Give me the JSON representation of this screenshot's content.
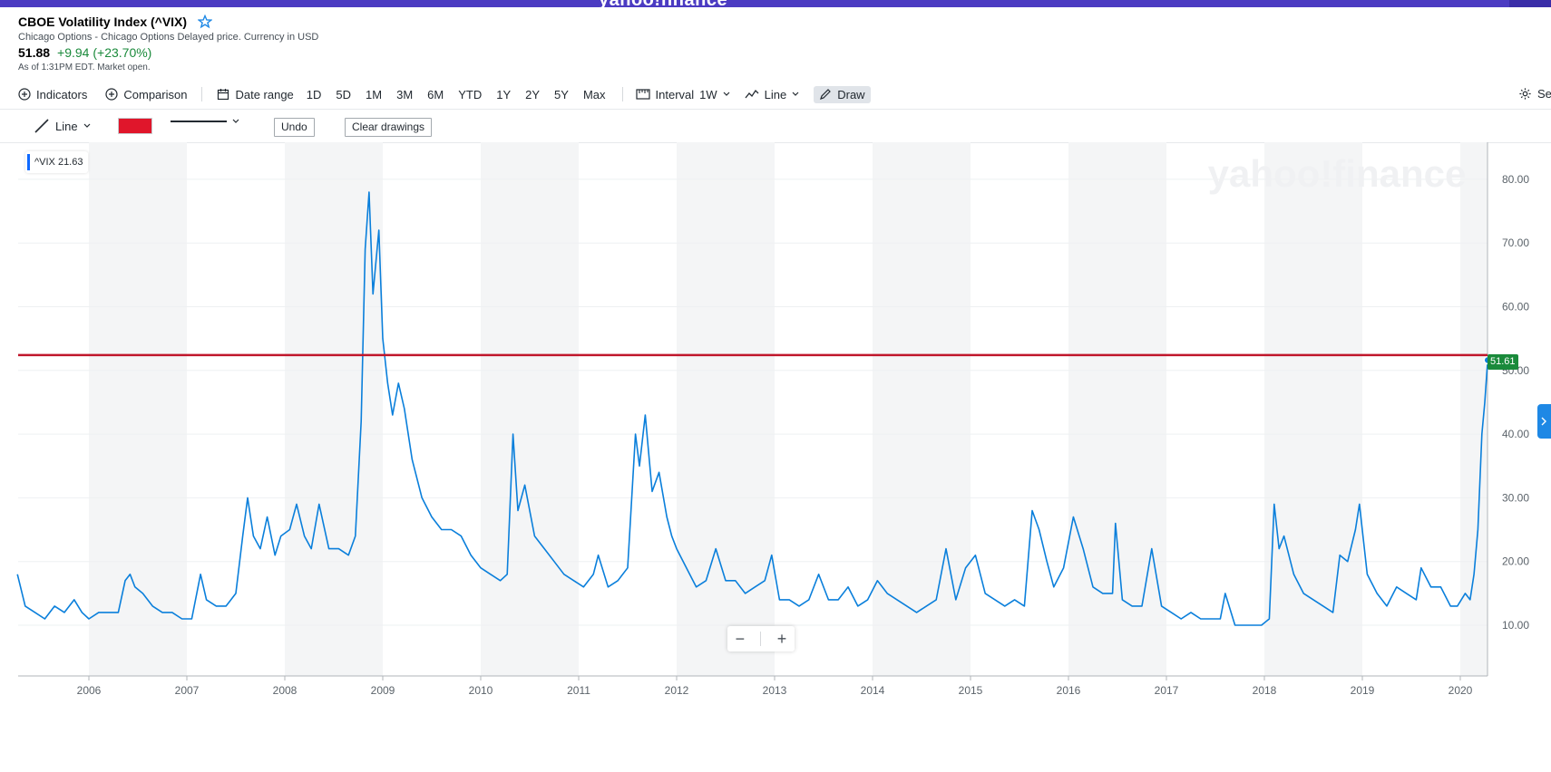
{
  "header": {
    "brand": "yahoo!finance"
  },
  "quote": {
    "title": "CBOE Volatility Index (^VIX)",
    "subtitle": "Chicago Options - Chicago Options Delayed price. Currency in USD",
    "price": "51.88",
    "change": "+9.94 (+23.70%)",
    "as_of": "As of 1:31PM EDT. Market open."
  },
  "toolbar": {
    "indicators": "Indicators",
    "comparison": "Comparison",
    "date_range": "Date range",
    "ranges": [
      "1D",
      "5D",
      "1M",
      "3M",
      "6M",
      "YTD",
      "1Y",
      "2Y",
      "5Y",
      "Max"
    ],
    "interval_label": "Interval",
    "interval_value": "1W",
    "chart_type": "Line",
    "draw": "Draw",
    "settings": "Se"
  },
  "draw_toolbar": {
    "tool": "Line",
    "color": "#e0162b",
    "undo": "Undo",
    "clear": "Clear drawings"
  },
  "chart": {
    "legend_label": "^VIX 21.63",
    "last_value_badge": "51.61",
    "watermark": "yahoo!finance",
    "zoom_out": "−",
    "zoom_in": "+"
  },
  "colors": {
    "line": "#0a7fdb",
    "horizontal_line": "#c0162b",
    "badge": "#1a8a3b",
    "year_band": "#f4f5f6"
  },
  "chart_data": {
    "type": "line",
    "title": "",
    "xlabel": "",
    "ylabel": "",
    "x_tick_labels": [
      "2006",
      "2007",
      "2008",
      "2009",
      "2010",
      "2011",
      "2012",
      "2013",
      "2014",
      "2015",
      "2016",
      "2017",
      "2018",
      "2019",
      "2020"
    ],
    "y_tick_labels": [
      "10.00",
      "20.00",
      "30.00",
      "40.00",
      "50.00",
      "60.00",
      "70.00",
      "80.00"
    ],
    "ylim": [
      0,
      87
    ],
    "xlim": [
      2005.27,
      2020.28
    ],
    "horizontal_line_value": 52.4,
    "last_value": 51.61,
    "series": [
      {
        "points": [
          [
            2005.27,
            18
          ],
          [
            2005.35,
            13
          ],
          [
            2005.45,
            12
          ],
          [
            2005.55,
            11
          ],
          [
            2005.65,
            13
          ],
          [
            2005.75,
            12
          ],
          [
            2005.85,
            14
          ],
          [
            2005.93,
            12
          ],
          [
            2006.0,
            11
          ],
          [
            2006.1,
            12
          ],
          [
            2006.2,
            12
          ],
          [
            2006.3,
            12
          ],
          [
            2006.37,
            17
          ],
          [
            2006.42,
            18
          ],
          [
            2006.47,
            16
          ],
          [
            2006.55,
            15
          ],
          [
            2006.65,
            13
          ],
          [
            2006.75,
            12
          ],
          [
            2006.85,
            12
          ],
          [
            2006.95,
            11
          ],
          [
            2007.05,
            11
          ],
          [
            2007.14,
            18
          ],
          [
            2007.2,
            14
          ],
          [
            2007.3,
            13
          ],
          [
            2007.4,
            13
          ],
          [
            2007.5,
            15
          ],
          [
            2007.57,
            24
          ],
          [
            2007.62,
            30
          ],
          [
            2007.68,
            24
          ],
          [
            2007.75,
            22
          ],
          [
            2007.82,
            27
          ],
          [
            2007.9,
            21
          ],
          [
            2007.96,
            24
          ],
          [
            2008.05,
            25
          ],
          [
            2008.12,
            29
          ],
          [
            2008.2,
            24
          ],
          [
            2008.27,
            22
          ],
          [
            2008.35,
            29
          ],
          [
            2008.45,
            22
          ],
          [
            2008.55,
            22
          ],
          [
            2008.65,
            21
          ],
          [
            2008.72,
            24
          ],
          [
            2008.78,
            42
          ],
          [
            2008.82,
            69
          ],
          [
            2008.86,
            78
          ],
          [
            2008.9,
            62
          ],
          [
            2008.96,
            72
          ],
          [
            2009.0,
            55
          ],
          [
            2009.05,
            48
          ],
          [
            2009.1,
            43
          ],
          [
            2009.16,
            48
          ],
          [
            2009.22,
            44
          ],
          [
            2009.3,
            36
          ],
          [
            2009.4,
            30
          ],
          [
            2009.5,
            27
          ],
          [
            2009.6,
            25
          ],
          [
            2009.7,
            25
          ],
          [
            2009.8,
            24
          ],
          [
            2009.9,
            21
          ],
          [
            2010.0,
            19
          ],
          [
            2010.1,
            18
          ],
          [
            2010.2,
            17
          ],
          [
            2010.27,
            18
          ],
          [
            2010.33,
            40
          ],
          [
            2010.38,
            28
          ],
          [
            2010.45,
            32
          ],
          [
            2010.55,
            24
          ],
          [
            2010.65,
            22
          ],
          [
            2010.75,
            20
          ],
          [
            2010.85,
            18
          ],
          [
            2010.95,
            17
          ],
          [
            2011.05,
            16
          ],
          [
            2011.15,
            18
          ],
          [
            2011.2,
            21
          ],
          [
            2011.3,
            16
          ],
          [
            2011.4,
            17
          ],
          [
            2011.5,
            19
          ],
          [
            2011.58,
            40
          ],
          [
            2011.62,
            35
          ],
          [
            2011.68,
            43
          ],
          [
            2011.75,
            31
          ],
          [
            2011.82,
            34
          ],
          [
            2011.9,
            27
          ],
          [
            2011.95,
            24
          ],
          [
            2012.0,
            22
          ],
          [
            2012.1,
            19
          ],
          [
            2012.2,
            16
          ],
          [
            2012.3,
            17
          ],
          [
            2012.4,
            22
          ],
          [
            2012.5,
            17
          ],
          [
            2012.6,
            17
          ],
          [
            2012.7,
            15
          ],
          [
            2012.8,
            16
          ],
          [
            2012.9,
            17
          ],
          [
            2012.97,
            21
          ],
          [
            2013.05,
            14
          ],
          [
            2013.15,
            14
          ],
          [
            2013.25,
            13
          ],
          [
            2013.35,
            14
          ],
          [
            2013.45,
            18
          ],
          [
            2013.55,
            14
          ],
          [
            2013.65,
            14
          ],
          [
            2013.75,
            16
          ],
          [
            2013.85,
            13
          ],
          [
            2013.95,
            14
          ],
          [
            2014.05,
            17
          ],
          [
            2014.15,
            15
          ],
          [
            2014.25,
            14
          ],
          [
            2014.35,
            13
          ],
          [
            2014.45,
            12
          ],
          [
            2014.55,
            13
          ],
          [
            2014.65,
            14
          ],
          [
            2014.75,
            22
          ],
          [
            2014.85,
            14
          ],
          [
            2014.95,
            19
          ],
          [
            2015.05,
            21
          ],
          [
            2015.15,
            15
          ],
          [
            2015.25,
            14
          ],
          [
            2015.35,
            13
          ],
          [
            2015.45,
            14
          ],
          [
            2015.55,
            13
          ],
          [
            2015.63,
            28
          ],
          [
            2015.7,
            25
          ],
          [
            2015.78,
            20
          ],
          [
            2015.85,
            16
          ],
          [
            2015.95,
            19
          ],
          [
            2016.05,
            27
          ],
          [
            2016.15,
            22
          ],
          [
            2016.25,
            16
          ],
          [
            2016.35,
            15
          ],
          [
            2016.45,
            15
          ],
          [
            2016.48,
            26
          ],
          [
            2016.55,
            14
          ],
          [
            2016.65,
            13
          ],
          [
            2016.75,
            13
          ],
          [
            2016.85,
            22
          ],
          [
            2016.95,
            13
          ],
          [
            2017.05,
            12
          ],
          [
            2017.15,
            11
          ],
          [
            2017.25,
            12
          ],
          [
            2017.35,
            11
          ],
          [
            2017.45,
            11
          ],
          [
            2017.55,
            11
          ],
          [
            2017.6,
            15
          ],
          [
            2017.7,
            10
          ],
          [
            2017.8,
            10
          ],
          [
            2017.9,
            10
          ],
          [
            2017.97,
            10
          ],
          [
            2018.05,
            11
          ],
          [
            2018.1,
            29
          ],
          [
            2018.15,
            22
          ],
          [
            2018.2,
            24
          ],
          [
            2018.3,
            18
          ],
          [
            2018.4,
            15
          ],
          [
            2018.5,
            14
          ],
          [
            2018.6,
            13
          ],
          [
            2018.7,
            12
          ],
          [
            2018.77,
            21
          ],
          [
            2018.85,
            20
          ],
          [
            2018.93,
            25
          ],
          [
            2018.97,
            29
          ],
          [
            2019.05,
            18
          ],
          [
            2019.15,
            15
          ],
          [
            2019.25,
            13
          ],
          [
            2019.35,
            16
          ],
          [
            2019.45,
            15
          ],
          [
            2019.55,
            14
          ],
          [
            2019.6,
            19
          ],
          [
            2019.7,
            16
          ],
          [
            2019.8,
            16
          ],
          [
            2019.9,
            13
          ],
          [
            2019.97,
            13
          ],
          [
            2020.05,
            15
          ],
          [
            2020.1,
            14
          ],
          [
            2020.14,
            18
          ],
          [
            2020.18,
            25
          ],
          [
            2020.22,
            40
          ],
          [
            2020.25,
            45
          ],
          [
            2020.28,
            51.61
          ]
        ]
      }
    ],
    "grid": true,
    "legend_placement": "top-left"
  }
}
